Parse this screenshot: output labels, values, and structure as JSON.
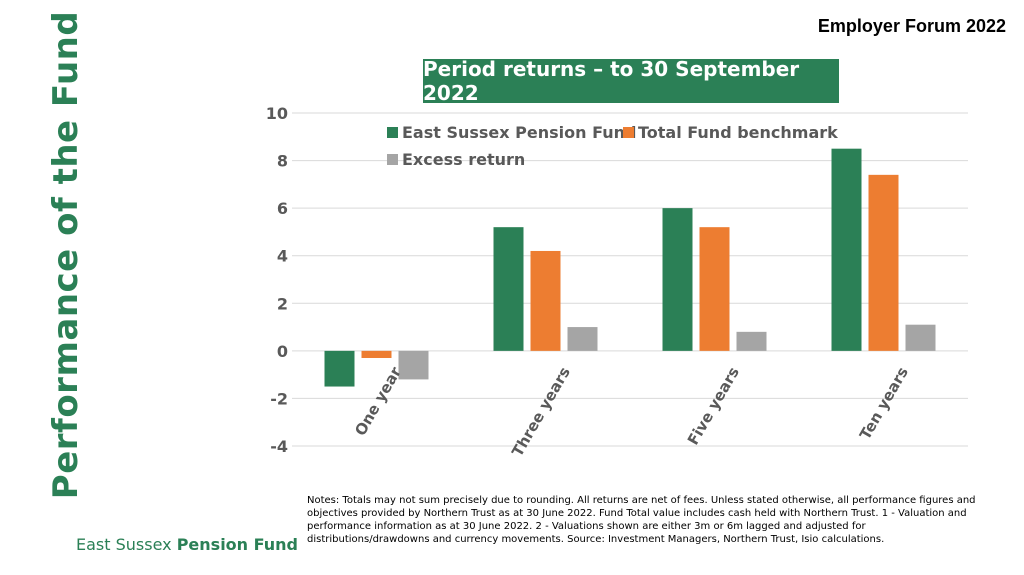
{
  "header": {
    "side_title": "Performance of the Fund",
    "forum_label": "Employer Forum 2022"
  },
  "footer": {
    "notes": "Notes: Totals may not sum precisely due to rounding. All returns are net of fees. Unless stated otherwise, all performance figures and objectives provided by Northern Trust as at 30 June 2022. Fund Total value includes cash held with Northern Trust. 1 - Valuation and performance information as at 30 June 2022. 2 - Valuations shown are either 3m or 6m lagged and adjusted for distributions/drawdowns and currency movements. Source: Investment Managers, Northern Trust, Isio calculations.",
    "logo_part1": "East Sussex",
    "logo_part2": "Pension Fund"
  },
  "colors": {
    "brand_green": "#2b8056",
    "series": [
      "#2b8056",
      "#ed7d31",
      "#a5a5a5"
    ]
  },
  "chart_data": {
    "type": "bar",
    "title": "Period returns – to 30 September 2022",
    "categories": [
      "One year",
      "Three years",
      "Five years",
      "Ten years"
    ],
    "series": [
      {
        "name": "East Sussex Pension Fund",
        "values": [
          -1.5,
          5.2,
          6.0,
          8.5
        ]
      },
      {
        "name": "Total Fund benchmark",
        "values": [
          -0.3,
          4.2,
          5.2,
          7.4
        ]
      },
      {
        "name": "Excess return",
        "values": [
          -1.2,
          1.0,
          0.8,
          1.1
        ]
      }
    ],
    "yticks": [
      10,
      8,
      6,
      4,
      2,
      0,
      -2,
      -4
    ],
    "ylim": [
      -4,
      10
    ],
    "grid": true,
    "legend_position": "top-left"
  }
}
